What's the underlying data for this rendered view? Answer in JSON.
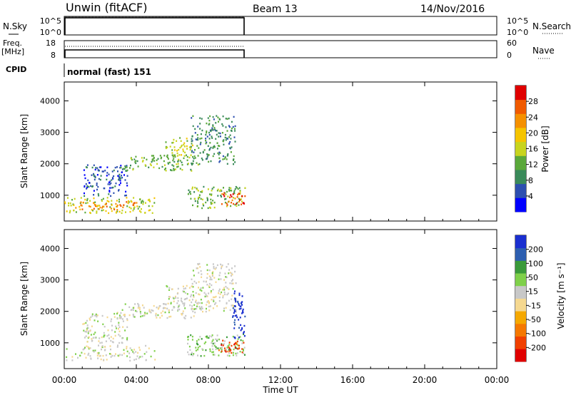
{
  "header": {
    "title": "Unwin (fitACF)",
    "beam": "Beam 13",
    "date": "14/Nov/2016"
  },
  "top_panels": {
    "nsky_label": "N.Sky",
    "nsky_ticks": [
      "10^5",
      "10^0"
    ],
    "nsearch_label": "N.Search",
    "nsearch_ticks": [
      "10^5",
      "10^0"
    ],
    "freq_label": "Freq.",
    "freq_unit": "[MHz]",
    "freq_ticks": [
      "18",
      "8"
    ],
    "nave_label": "Nave",
    "nave_ticks": [
      "60",
      "0"
    ],
    "cpid_label": "CPID",
    "cpid_value": "normal (fast) 151"
  },
  "chart_data": [
    {
      "type": "heatmap",
      "name": "power",
      "ylabel": "Slant Range [km]",
      "xlabel": "Time UT",
      "ylim": [
        180,
        4600
      ],
      "xlim": [
        0,
        24
      ],
      "x_ticks": [
        "00:00",
        "04:00",
        "08:00",
        "12:00",
        "16:00",
        "20:00",
        "00:00"
      ],
      "y_ticks": [
        1000,
        2000,
        3000,
        4000
      ],
      "colorbar": {
        "label": "Power [dB]",
        "ticks": [
          "28",
          "24",
          "20",
          "16",
          "12",
          "8",
          "4"
        ],
        "colors": [
          "#0000ff",
          "#2d4fb0",
          "#3a8a5a",
          "#5aa83a",
          "#c8d41e",
          "#f5c400",
          "#f59000",
          "#f05a00",
          "#e00000"
        ]
      },
      "scatter_regions": [
        {
          "t0": 0.0,
          "t1": 5.0,
          "r0": 450,
          "r1": 950,
          "level": 4
        },
        {
          "t0": 0.6,
          "t1": 4.0,
          "r0": 560,
          "r1": 820,
          "level": 6
        },
        {
          "t0": 1.0,
          "t1": 3.5,
          "r0": 1000,
          "r1": 2000,
          "level": 1
        },
        {
          "t0": 3.0,
          "t1": 7.5,
          "r0": 1800,
          "r1": 2300,
          "level": 3
        },
        {
          "t0": 5.5,
          "t1": 7.2,
          "r0": 2200,
          "r1": 2850,
          "level": 4
        },
        {
          "t0": 7.0,
          "t1": 9.5,
          "r0": 2000,
          "r1": 3550,
          "level": 2
        },
        {
          "t0": 6.8,
          "t1": 10.0,
          "r0": 600,
          "r1": 1300,
          "level": 3
        },
        {
          "t0": 8.5,
          "t1": 10.0,
          "r0": 700,
          "r1": 1100,
          "level": 7
        }
      ]
    },
    {
      "type": "heatmap",
      "name": "velocity",
      "ylabel": "Slant Range [km]",
      "xlabel": "Time UT",
      "ylim": [
        180,
        4600
      ],
      "xlim": [
        0,
        24
      ],
      "x_ticks": [
        "00:00",
        "04:00",
        "08:00",
        "12:00",
        "16:00",
        "20:00",
        "00:00"
      ],
      "y_ticks": [
        1000,
        2000,
        3000,
        4000
      ],
      "colorbar": {
        "label": "Velocity [m s⁻¹]",
        "ticks": [
          "200",
          "100",
          "50",
          "15",
          "-15",
          "-50",
          "-100",
          "-200"
        ],
        "colors": [
          "#e00000",
          "#f04000",
          "#f57800",
          "#f5a800",
          "#f5d890",
          "#c8c8c8",
          "#7fd04a",
          "#3a9a3a",
          "#2d5fb0",
          "#1a2fd0"
        ]
      },
      "scatter_regions": [
        {
          "t0": 0.0,
          "t1": 5.0,
          "r0": 450,
          "r1": 950,
          "level": 5
        },
        {
          "t0": 1.0,
          "t1": 3.5,
          "r0": 1000,
          "r1": 2000,
          "level": 5
        },
        {
          "t0": 3.0,
          "t1": 7.5,
          "r0": 1800,
          "r1": 2300,
          "level": 5
        },
        {
          "t0": 5.5,
          "t1": 7.2,
          "r0": 2200,
          "r1": 2850,
          "level": 5
        },
        {
          "t0": 7.0,
          "t1": 9.5,
          "r0": 2000,
          "r1": 3550,
          "level": 5
        },
        {
          "t0": 6.8,
          "t1": 10.0,
          "r0": 600,
          "r1": 1300,
          "level": 6
        },
        {
          "t0": 8.5,
          "t1": 10.0,
          "r0": 700,
          "r1": 1100,
          "level": 1
        },
        {
          "t0": 9.3,
          "t1": 10.0,
          "r0": 1100,
          "r1": 2700,
          "level": 9
        }
      ]
    }
  ]
}
